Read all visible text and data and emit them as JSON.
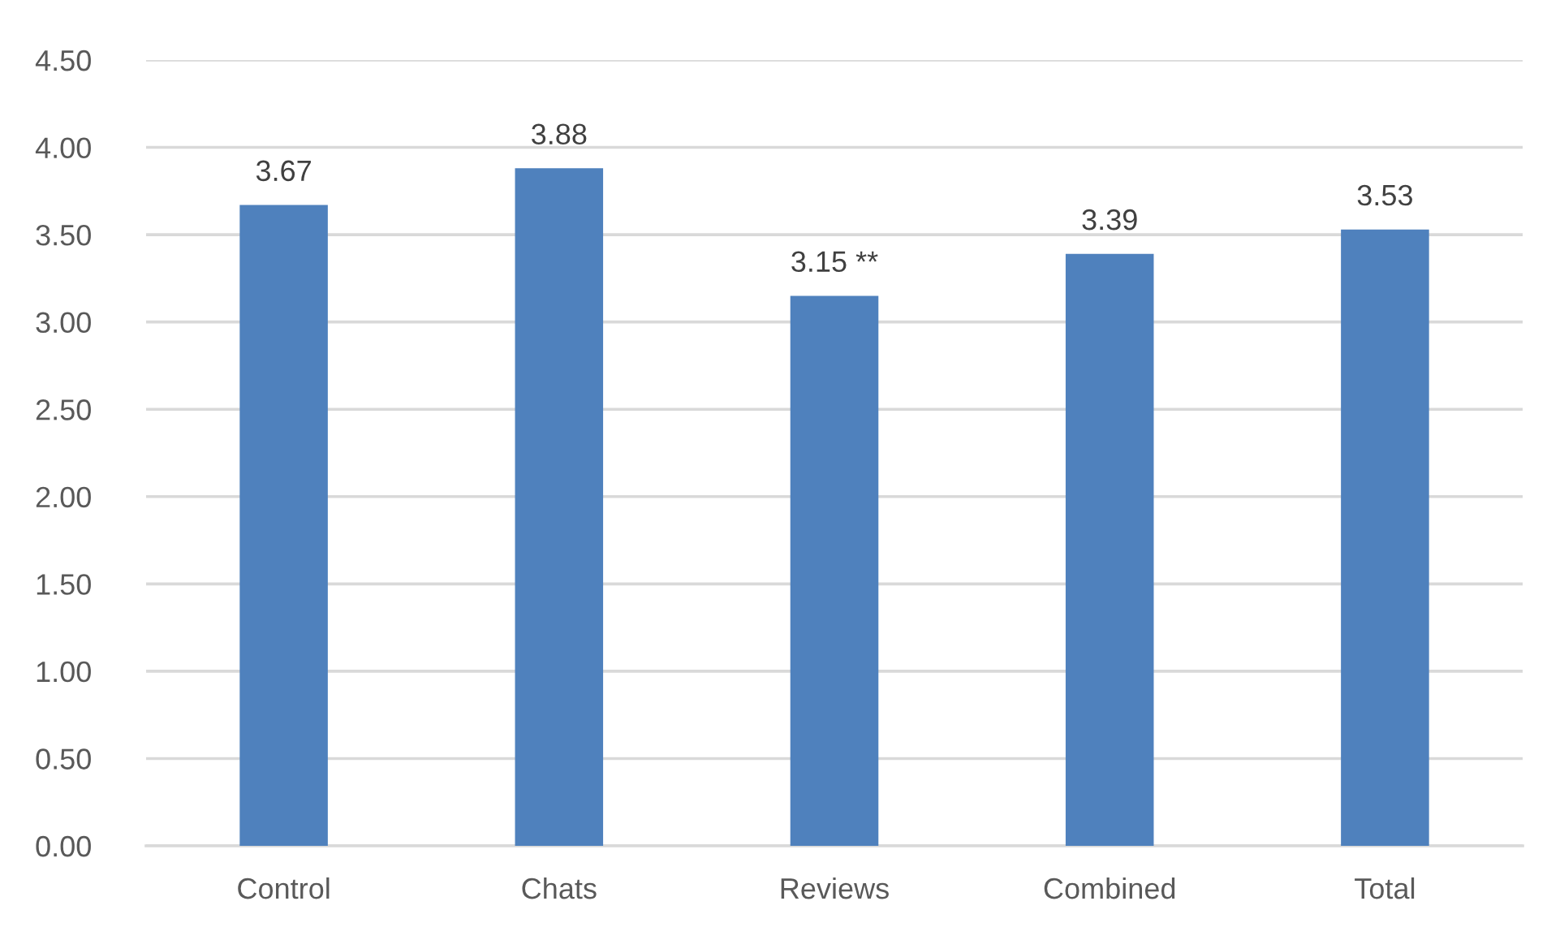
{
  "chart_data": {
    "type": "bar",
    "categories": [
      "Control",
      "Chats",
      "Reviews",
      "Combined",
      "Total"
    ],
    "values": [
      3.67,
      3.88,
      3.15,
      3.39,
      3.53
    ],
    "value_labels": [
      "3.67",
      "3.88",
      "3.15 **",
      "3.39",
      "3.53"
    ],
    "color": "#4f81bd",
    "ylim": [
      0,
      4.5
    ],
    "yticks": [
      {
        "value": 0,
        "label": "0.00"
      },
      {
        "value": 0.5,
        "label": "0.50"
      },
      {
        "value": 1,
        "label": "1.00"
      },
      {
        "value": 1.5,
        "label": "1.50"
      },
      {
        "value": 2,
        "label": "2.00"
      },
      {
        "value": 2.5,
        "label": "2.50"
      },
      {
        "value": 3,
        "label": "3.00"
      },
      {
        "value": 3.5,
        "label": "3.50"
      },
      {
        "value": 4,
        "label": "4.00"
      },
      {
        "value": 4.5,
        "label": "4.50"
      }
    ],
    "grid": "y"
  }
}
